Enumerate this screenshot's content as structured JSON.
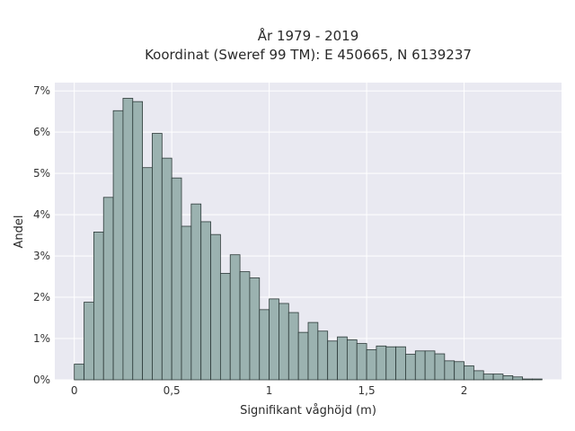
{
  "chart_data": {
    "type": "bar",
    "title": "År 1979 - 2019",
    "subtitle": "Koordinat (Sweref 99 TM): E 450665, N 6139237",
    "xlabel": "Signifikant våghöjd (m)",
    "ylabel": "Andel",
    "xlim": [
      -0.1,
      2.5
    ],
    "ylim": [
      0,
      7.2
    ],
    "x_ticks": [
      0,
      0.5,
      1,
      1.5,
      2
    ],
    "x_tick_labels": [
      "0",
      "0,5",
      "1",
      "1,5",
      "2"
    ],
    "y_ticks": [
      0,
      1,
      2,
      3,
      4,
      5,
      6,
      7
    ],
    "y_tick_labels": [
      "0%",
      "1%",
      "2%",
      "3%",
      "4%",
      "5%",
      "6%",
      "7%"
    ],
    "grid": true,
    "bin_width": 0.05,
    "bin_starts": [
      0.0,
      0.05,
      0.1,
      0.15,
      0.2,
      0.25,
      0.3,
      0.35,
      0.4,
      0.45,
      0.5,
      0.55,
      0.6,
      0.65,
      0.7,
      0.75,
      0.8,
      0.85,
      0.9,
      0.95,
      1.0,
      1.05,
      1.1,
      1.15,
      1.2,
      1.25,
      1.3,
      1.35,
      1.4,
      1.45,
      1.5,
      1.55,
      1.6,
      1.65,
      1.7,
      1.75,
      1.8,
      1.85,
      1.9,
      1.95,
      2.0,
      2.05,
      2.1,
      2.15,
      2.2,
      2.25,
      2.3,
      2.35
    ],
    "values": [
      0.38,
      1.88,
      3.58,
      4.42,
      6.52,
      6.82,
      6.74,
      5.14,
      5.97,
      5.37,
      4.89,
      3.72,
      4.26,
      3.83,
      3.52,
      2.58,
      3.03,
      2.62,
      2.47,
      1.7,
      1.96,
      1.85,
      1.63,
      1.15,
      1.39,
      1.18,
      0.94,
      1.04,
      0.97,
      0.88,
      0.73,
      0.82,
      0.8,
      0.8,
      0.62,
      0.7,
      0.7,
      0.63,
      0.46,
      0.44,
      0.34,
      0.22,
      0.14,
      0.14,
      0.1,
      0.07,
      0.02,
      0.02
    ],
    "colors": {
      "bar_fill": "#9bb2b0",
      "bar_stroke": "#2d3a39",
      "plot_bg": "#e9e9f1",
      "grid": "#ffffff"
    }
  }
}
